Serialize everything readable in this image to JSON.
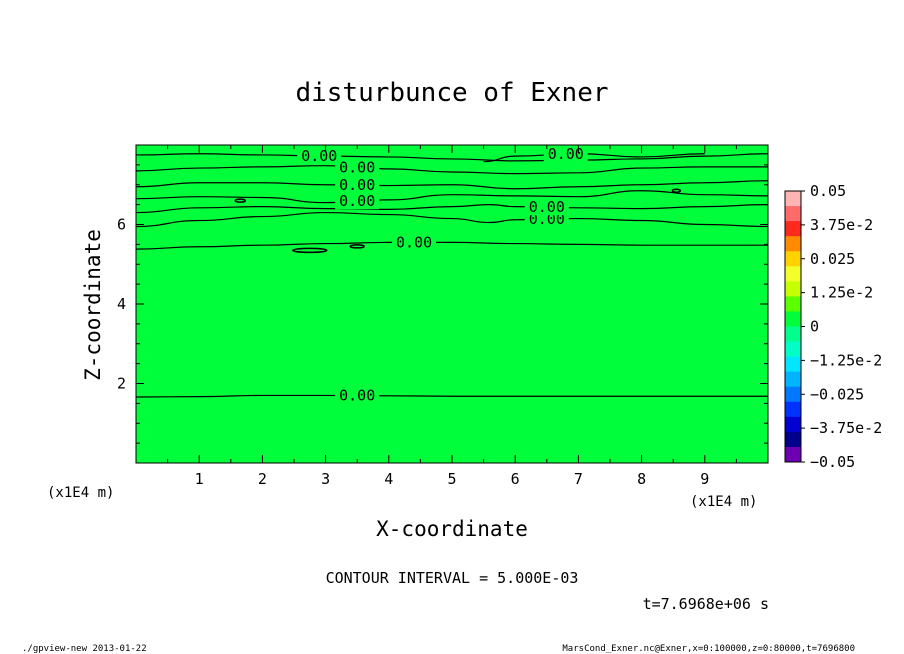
{
  "chart_data": {
    "type": "contour",
    "title": "disturbunce of Exner",
    "xlabel": "X-coordinate",
    "ylabel": "Z-coordinate",
    "x_unit": "(x1E4 m)",
    "y_unit": "(x1E4 m)",
    "xlim": [
      0,
      10
    ],
    "ylim": [
      0,
      8
    ],
    "x_ticks": [
      1,
      2,
      3,
      4,
      5,
      6,
      7,
      8,
      9
    ],
    "y_ticks": [
      2,
      4,
      6
    ],
    "contour_interval_text": "CONTOUR INTERVAL = 5.000E-03",
    "contour_label": "0.00",
    "contour_lines": [
      {
        "points": [
          [
            0,
            1.66
          ],
          [
            1,
            1.67
          ],
          [
            2,
            1.7
          ],
          [
            3,
            1.7
          ],
          [
            4,
            1.69
          ],
          [
            5,
            1.68
          ],
          [
            6,
            1.68
          ],
          [
            7,
            1.68
          ],
          [
            8,
            1.68
          ],
          [
            9,
            1.68
          ],
          [
            10,
            1.68
          ]
        ],
        "label_x": 3.5
      },
      {
        "points": [
          [
            0,
            5.38
          ],
          [
            1,
            5.44
          ],
          [
            2,
            5.48
          ],
          [
            3,
            5.52
          ],
          [
            4,
            5.55
          ],
          [
            5,
            5.55
          ],
          [
            6,
            5.52
          ],
          [
            7,
            5.5
          ],
          [
            8,
            5.48
          ],
          [
            9,
            5.48
          ],
          [
            10,
            5.48
          ]
        ],
        "label_x": 4.4
      },
      {
        "points": [
          [
            0,
            5.95
          ],
          [
            1,
            6.1
          ],
          [
            2,
            6.2
          ],
          [
            3,
            6.3
          ],
          [
            4,
            6.25
          ],
          [
            5,
            6.15
          ],
          [
            5.6,
            6.05
          ],
          [
            6,
            6.12
          ],
          [
            7,
            6.15
          ],
          [
            8,
            6.1
          ],
          [
            9,
            6.0
          ],
          [
            10,
            5.95
          ]
        ],
        "label_x": 6.5
      },
      {
        "points": [
          [
            0,
            6.3
          ],
          [
            1,
            6.42
          ],
          [
            2,
            6.45
          ],
          [
            3,
            6.4
          ],
          [
            4,
            6.38
          ],
          [
            5,
            6.45
          ],
          [
            5.6,
            6.5
          ],
          [
            6,
            6.45
          ],
          [
            7,
            6.42
          ],
          [
            8,
            6.4
          ],
          [
            9,
            6.45
          ],
          [
            10,
            6.5
          ]
        ],
        "label_x": 6.5
      },
      {
        "points": [
          [
            0,
            6.65
          ],
          [
            1,
            6.7
          ],
          [
            2,
            6.68
          ],
          [
            3,
            6.55
          ],
          [
            4,
            6.62
          ],
          [
            5,
            6.75
          ],
          [
            6,
            6.72
          ],
          [
            7,
            6.7
          ],
          [
            8,
            6.85
          ],
          [
            9,
            6.75
          ],
          [
            10,
            6.72
          ]
        ],
        "label_x": 3.5
      },
      {
        "points": [
          [
            0,
            6.95
          ],
          [
            1,
            7.05
          ],
          [
            2,
            7.05
          ],
          [
            3,
            7.0
          ],
          [
            4,
            6.98
          ],
          [
            5,
            7.0
          ],
          [
            6,
            6.9
          ],
          [
            7,
            6.95
          ],
          [
            8,
            7.0
          ],
          [
            9,
            7.05
          ],
          [
            10,
            7.1
          ]
        ],
        "label_x": 3.5
      },
      {
        "points": [
          [
            0,
            7.35
          ],
          [
            1,
            7.42
          ],
          [
            2,
            7.45
          ],
          [
            3,
            7.48
          ],
          [
            4,
            7.4
          ],
          [
            5,
            7.32
          ],
          [
            6,
            7.28
          ],
          [
            7,
            7.3
          ],
          [
            8,
            7.42
          ],
          [
            9,
            7.45
          ],
          [
            10,
            7.45
          ]
        ],
        "label_x": 3.5
      },
      {
        "points": [
          [
            0,
            7.75
          ],
          [
            1,
            7.78
          ],
          [
            2,
            7.75
          ],
          [
            3,
            7.72
          ],
          [
            4,
            7.7
          ],
          [
            5,
            7.65
          ],
          [
            6,
            7.6
          ],
          [
            7,
            7.62
          ],
          [
            8,
            7.65
          ],
          [
            9,
            7.72
          ],
          [
            10,
            7.78
          ]
        ],
        "label_x": 2.9
      },
      {
        "points": [
          [
            5.5,
            7.58
          ],
          [
            6,
            7.72
          ],
          [
            7,
            7.78
          ],
          [
            8,
            7.7
          ],
          [
            9,
            7.78
          ]
        ],
        "label_x": 6.8
      }
    ],
    "colorbar": {
      "labels": [
        "0.05",
        "3.75e-2",
        "0.025",
        "1.25e-2",
        "0",
        "−1.25e-2",
        "−0.025",
        "−3.75e-2",
        "−0.05"
      ],
      "colors": [
        "#ffb4b4",
        "#ff6a6a",
        "#ff2a1e",
        "#ff8a00",
        "#ffd200",
        "#f2ff2a",
        "#c6ff00",
        "#5aff00",
        "#00ff3a",
        "#00ff8c",
        "#00ffc6",
        "#00e6ff",
        "#00b4ff",
        "#0078ff",
        "#0032ff",
        "#0000d2",
        "#00008c",
        "#6e00b4"
      ]
    }
  },
  "footer": {
    "time": "t=7.6968e+06 s",
    "left_caption": "./gpview-new  2013-01-22",
    "right_caption": "MarsCond_Exner.nc@Exner,x=0:100000,z=0:80000,t=7696800"
  }
}
